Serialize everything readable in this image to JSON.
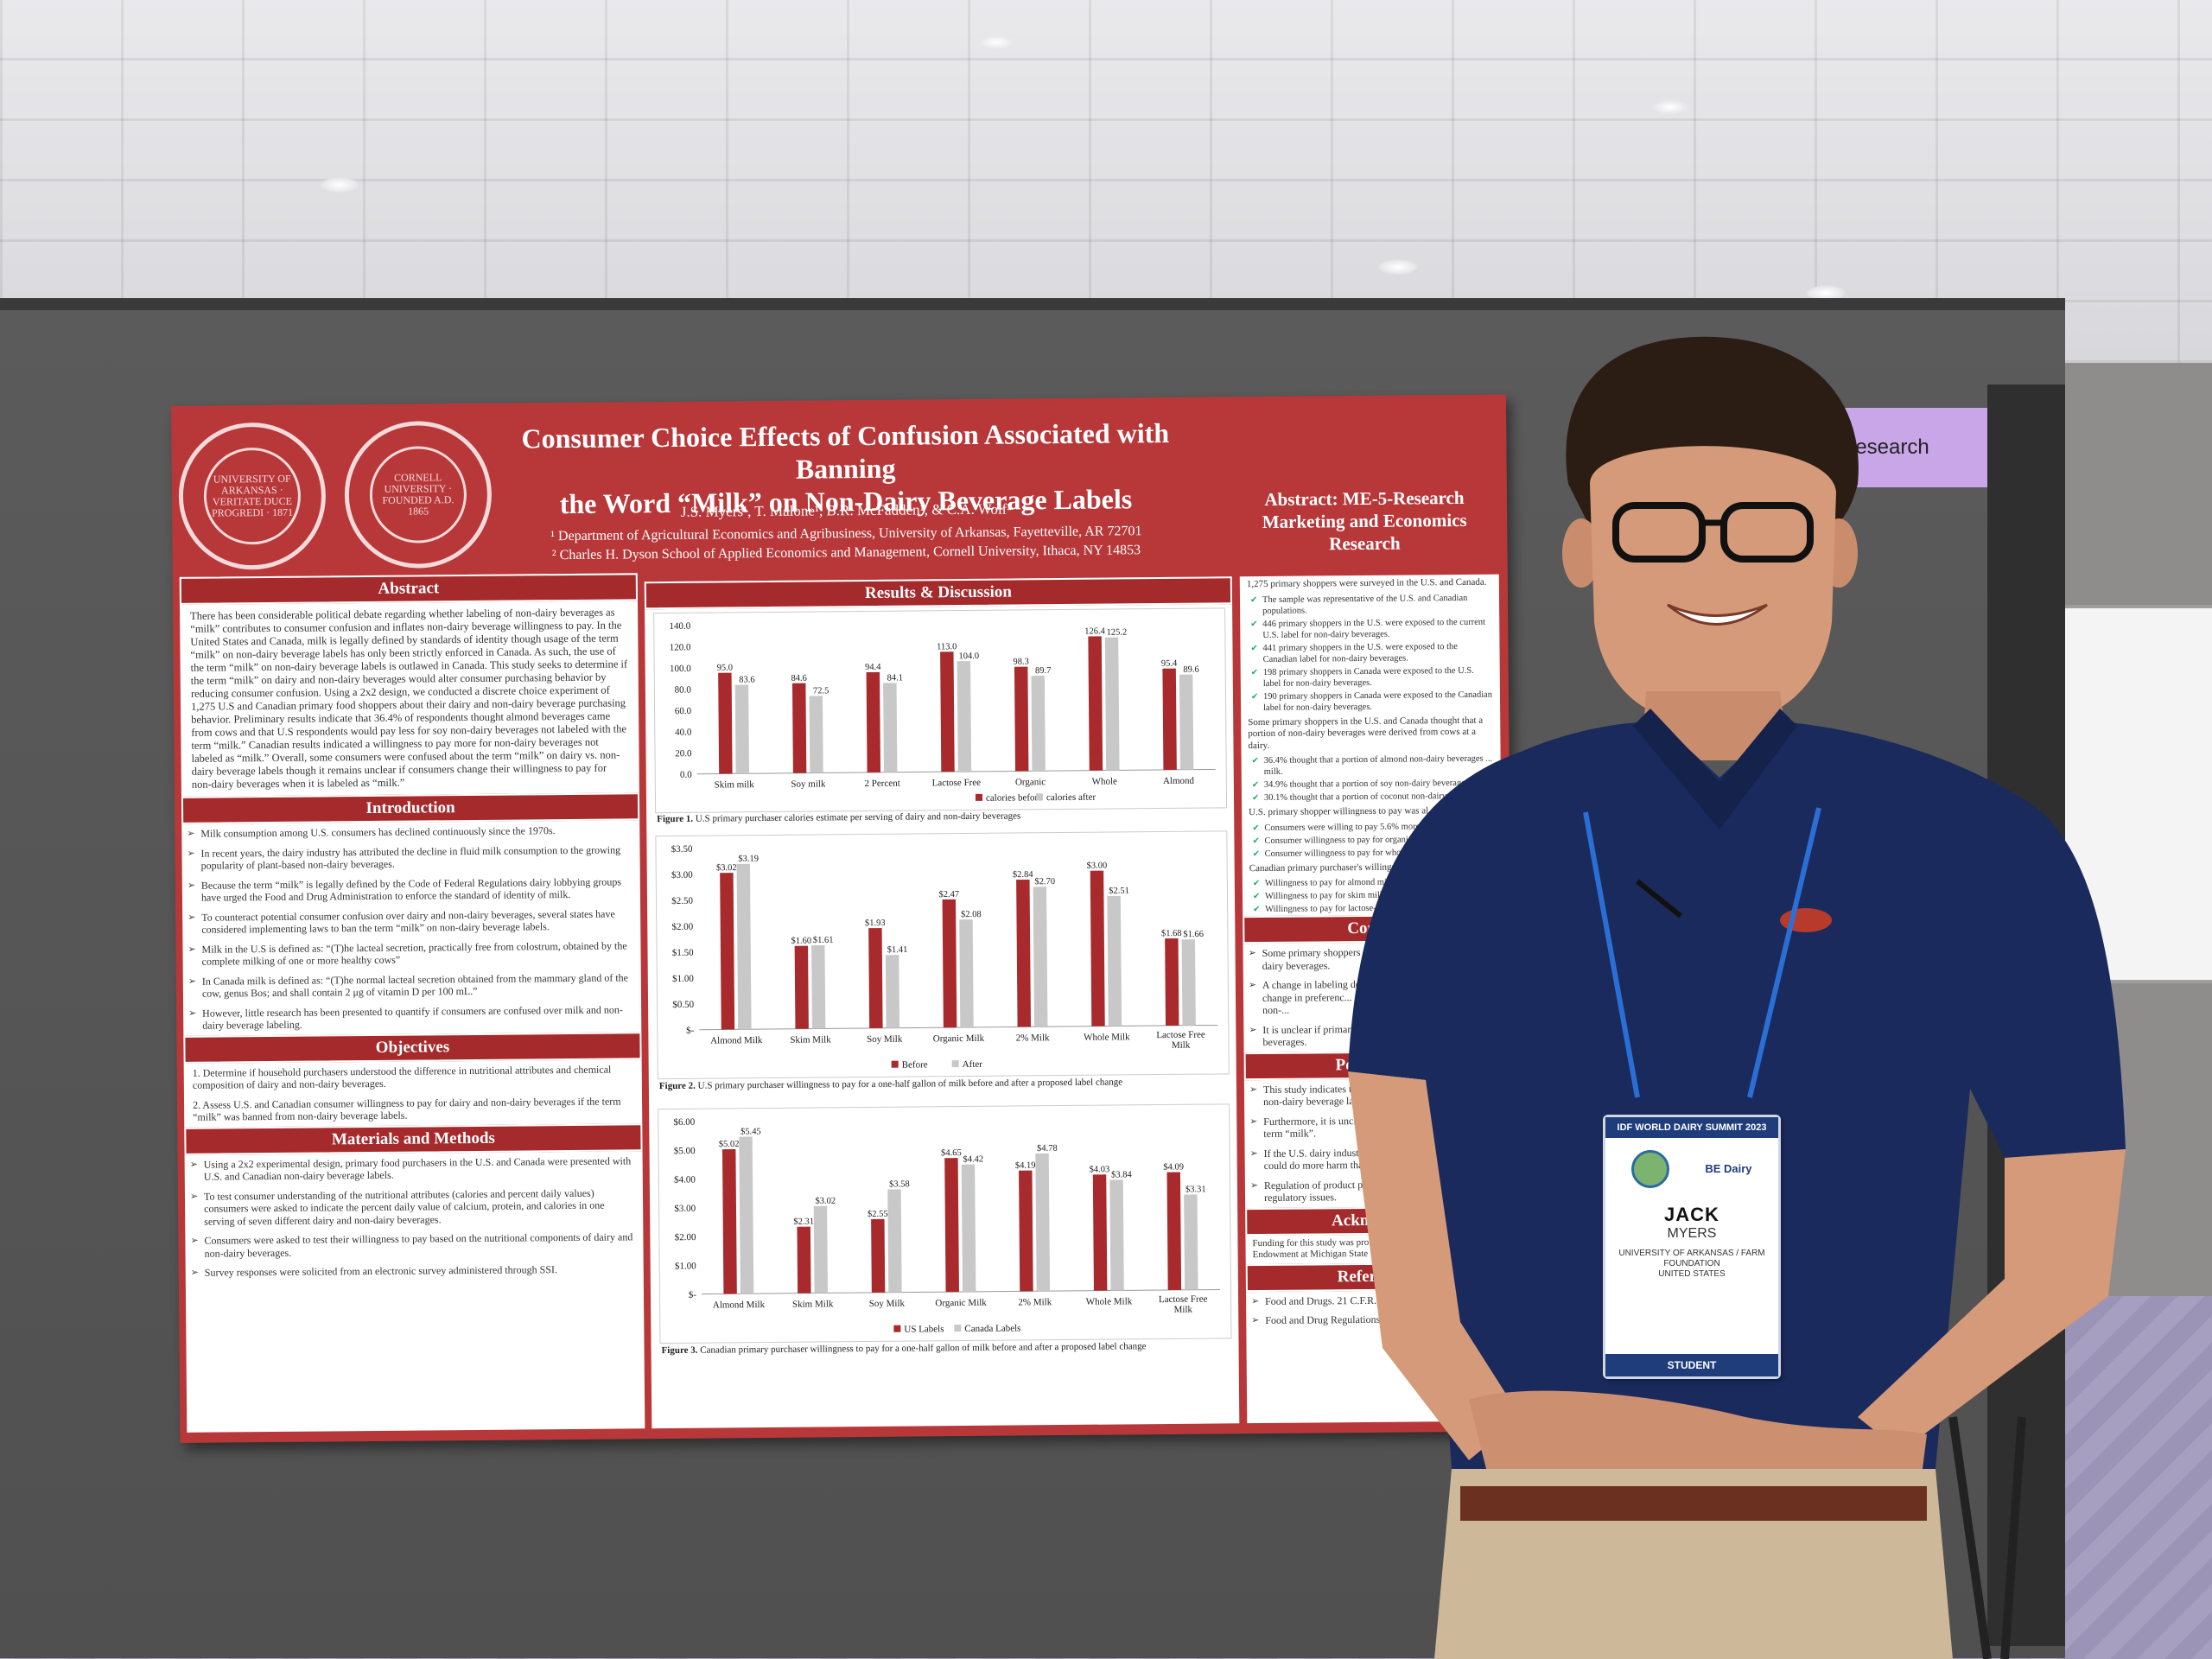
{
  "poster": {
    "seal_left": "UNIVERSITY OF ARKANSAS · VERITATE DUCE PROGREDI · 1871",
    "seal_right": "CORNELL UNIVERSITY · FOUNDED A.D. 1865",
    "title_line1": "Consumer Choice Effects of Confusion Associated with Banning",
    "title_line2": "the Word “Milk” on Non-Dairy Beverage Labels",
    "authors": "J.S. Myers¹, T. Malone¹, B.R. McFadden¹, & C.A. Wolf²",
    "affiliation1": "¹ Department of Agricultural Economics and Agribusiness, University of Arkansas, Fayetteville, AR 72701",
    "affiliation2": "² Charles H. Dyson School of Applied Economics and Management, Cornell University, Ithaca, NY 14853",
    "abstract_tag": "Abstract: ME-5-Research Marketing and Economics Research",
    "abstract_head": "Abstract",
    "abstract_text": "There has been considerable political debate regarding whether labeling of non-dairy beverages as “milk” contributes to consumer confusion and inflates non-dairy beverage willingness to pay. In the United States and Canada, milk is legally defined by standards of identity though usage of the term “milk” on non-dairy beverage labels has only been strictly enforced in Canada. As such, the use of the term “milk” on non-dairy beverage labels is outlawed in Canada. This study seeks to determine if the term “milk” on dairy and non-dairy beverages would alter consumer purchasing behavior by reducing consumer confusion. Using a 2x2 design, we conducted a discrete choice experiment of 1,275 U.S and Canadian primary food shoppers about their dairy and non-dairy beverage purchasing behavior. Preliminary results indicate that 36.4% of respondents thought almond beverages came from cows and that U.S respondents would pay less for soy non-dairy beverages not labeled with the term “milk.” Canadian results indicated a willingness to pay more for non-dairy beverages not labeled as “milk.” Overall, some consumers were confused about the term “milk” on dairy vs. non-dairy beverage labels though it remains unclear if consumers change their willingness to pay for non-dairy beverages when it is labeled as “milk.”",
    "intro_head": "Introduction",
    "intro_bullets": [
      "Milk consumption among U.S. consumers has declined continuously since the 1970s.",
      "In recent years, the dairy industry has attributed the decline in fluid milk consumption to the growing popularity of plant-based non-dairy beverages.",
      "Because the term “milk” is legally defined by the Code of Federal Regulations dairy lobbying groups have urged the Food and Drug Administration to enforce the standard of identity of milk.",
      "To counteract potential consumer confusion over dairy and non-dairy beverages, several states have considered implementing laws to ban the term “milk” on non-dairy beverage labels.",
      "Milk in the U.S is defined as: “(T)he lacteal secretion, practically free from colostrum, obtained by the complete milking of one or more healthy cows”",
      "In Canada milk is defined as: “(T)he normal lacteal secretion obtained from the mammary gland of the cow, genus Bos; and shall contain 2 μg of vitamin D per 100 mL.”",
      "However, little research has been presented to quantify if consumers are confused over milk and non-dairy beverage labeling."
    ],
    "obj_head": "Objectives",
    "objectives": [
      "1. Determine if household purchasers understood the difference in nutritional attributes and chemical composition of dairy and non-dairy beverages.",
      "2. Assess U.S. and Canadian consumer willingness to pay for dairy and non-dairy beverages if the term “milk” was banned from non-dairy beverage labels."
    ],
    "methods_head": "Materials and Methods",
    "methods_bullets": [
      "Using a 2x2 experimental design, primary food purchasers in the U.S. and Canada were presented with U.S. and Canadian non-dairy beverage labels.",
      "To test consumer understanding of the nutritional attributes (calories and percent daily values) consumers were asked to indicate the percent daily value of calcium, protein, and calories in one serving of seven different dairy and non-dairy beverages.",
      "Consumers were asked to test their willingness to pay based on the nutritional components of dairy and non-dairy beverages.",
      "Survey responses were solicited from an electronic survey administered through SSI."
    ],
    "results_head": "Results & Discussion",
    "fig1_caption_bold": "Figure 1.",
    "fig1_caption": " U.S primary purchaser calories estimate per serving of dairy and non-dairy beverages",
    "fig2_caption_bold": "Figure 2.",
    "fig2_caption": " U.S primary purchaser willingness to pay for a one-half gallon of milk before and after a proposed label change",
    "fig3_caption_bold": "Figure 3.",
    "fig3_caption": " Canadian primary purchaser willingness to pay for a one-half gallon of milk before and after a proposed label change",
    "right_p1": "1,275 primary shoppers were surveyed in the U.S. and Canada.",
    "right_checks1": [
      "The sample was representative of the U.S. and Canadian populations.",
      "446 primary shoppers in the U.S. were exposed to the current U.S. label for non-dairy beverages.",
      "441 primary shoppers in the U.S. were exposed to the Canadian label for non-dairy beverages.",
      "198 primary shoppers in Canada were exposed to the U.S. label for non-dairy beverages.",
      "190 primary shoppers in Canada were exposed to the Canadian label for non-dairy beverages."
    ],
    "right_p2": "Some primary shoppers in the U.S. and Canada thought that a portion of non-dairy beverages were derived from cows at a dairy.",
    "right_checks2": [
      "36.4% thought that a portion of almond non-dairy beverages ... milk.",
      "34.9% thought that a portion of soy non-dairy beverages ...",
      "30.1% thought that a portion of coconut non-dairy ... milk."
    ],
    "right_p3": "U.S. primary shopper willingness to pay was al... label change.",
    "right_checks3": [
      "Consumers were willing to pay 5.6% more f...",
      "Consumer willingness to pay for organic m...",
      "Consumer willingness to pay for whole mi..."
    ],
    "right_p4": "Canadian primary purchaser's willingness to ... the label change.",
    "right_checks4": [
      "Willingness to pay for almond milk increa...",
      "Willingness to pay for skim milk increa...",
      "Willingness to pay for lactose-free milk ..."
    ],
    "conclusion_head": "Conclu",
    "conclusion_bullets": [
      "Some primary shoppers were confused ... and non-dairy beverages.",
      "A change in labeling does appear to ... is unclear if this change in preferenc... nutritional attributes of dairy and non-...",
      "It is unclear if primary shoppers will ... non-dairy beverages."
    ],
    "policy_head": "Policy Imp",
    "policy_bullets": [
      "This study indicates that it is unclear ... restricted on non-dairy beverage labels w...",
      "Furthermore, it is unclear if the dairy in... use of the term “milk”.",
      "If the U.S. dairy industry chooses to figh... labeling, it could do more harm than good...",
      "Regulation of product placement in groc... box of regulatory issues."
    ],
    "ack_head": "Acknowledg",
    "ack_text": "Funding for this study was provided by th... Elton R. Smith Endowment at Michigan State U...",
    "ref_head": "References",
    "refs": [
      "Food and Drugs. 21 C.F.R. § 131 (2022)",
      "Food and Drug Regulations B.08.028.1 (2022)"
    ]
  },
  "chart_data": [
    {
      "type": "bar",
      "categories": [
        "Skim milk",
        "Soy milk",
        "2 Percent",
        "Lactose Free",
        "Organic",
        "Whole",
        "Almond"
      ],
      "series": [
        {
          "name": "calories before",
          "values": [
            95.0,
            84.6,
            94.4,
            113.0,
            98.3,
            126.4,
            95.4
          ]
        },
        {
          "name": "calories after",
          "values": [
            83.6,
            72.5,
            84.1,
            104.0,
            89.7,
            125.2,
            89.6
          ]
        }
      ],
      "ylim": [
        0,
        140
      ],
      "yticks": [
        "140.0",
        "120.0",
        "100.0",
        "80.0",
        "60.0",
        "40.0",
        "20.0",
        "0.0"
      ],
      "value_labels_before": [
        "95.0",
        "84.6",
        "94.4",
        "113.0",
        "98.3",
        "126.4",
        "95.4"
      ],
      "value_labels_after": [
        "83.6",
        "72.5",
        "84.1",
        "104.0",
        "89.7",
        "125.2",
        "89.6"
      ],
      "legend": "top-right",
      "colors": [
        "#a82a2c",
        "#c8c8c8"
      ]
    },
    {
      "type": "bar",
      "categories": [
        "Almond Milk",
        "Skim Milk",
        "Soy Milk",
        "Organic Milk",
        "2% Milk",
        "Whole Milk",
        "Lactose Free Milk"
      ],
      "series": [
        {
          "name": "Before",
          "values": [
            3.02,
            1.6,
            1.93,
            2.47,
            2.84,
            3.0,
            1.68
          ]
        },
        {
          "name": "After",
          "values": [
            3.19,
            1.61,
            1.41,
            2.08,
            2.7,
            2.51,
            1.66
          ]
        }
      ],
      "ylim": [
        0,
        3.5
      ],
      "yticks": [
        "$3.50",
        "$3.00",
        "$2.50",
        "$2.00",
        "$1.50",
        "$1.00",
        "$0.50",
        "$-"
      ],
      "value_labels_before": [
        "$3.02",
        "$1.60",
        "$1.93",
        "$2.47",
        "$2.84",
        "$3.00",
        "$1.68"
      ],
      "value_labels_after": [
        "$3.19",
        "$1.61",
        "$1.41",
        "$2.08",
        "$2.70",
        "$2.51",
        "$1.66"
      ],
      "legend": "bottom",
      "colors": [
        "#a82a2c",
        "#c8c8c8"
      ]
    },
    {
      "type": "bar",
      "categories": [
        "Almond Milk",
        "Skim Milk",
        "Soy Milk",
        "Organic Milk",
        "2% Milk",
        "Whole Milk",
        "Lactose Free Milk"
      ],
      "series": [
        {
          "name": "US Labels",
          "values": [
            5.02,
            2.31,
            2.55,
            4.65,
            4.19,
            4.03,
            4.09
          ]
        },
        {
          "name": "Canada Labels",
          "values": [
            5.45,
            3.02,
            3.58,
            4.42,
            4.78,
            3.84,
            3.31
          ]
        }
      ],
      "ylim": [
        0,
        6
      ],
      "yticks": [
        "$6.00",
        "$5.00",
        "$4.00",
        "$3.00",
        "$2.00",
        "$1.00",
        "$-"
      ],
      "value_labels_before": [
        "$5.02",
        "$2.31",
        "$2.55",
        "$4.65",
        "$4.19",
        "$4.03",
        "$4.09"
      ],
      "value_labels_after": [
        "$5.45",
        "$3.02",
        "$3.58",
        "$4.42",
        "$4.78",
        "$3.84",
        "$3.31"
      ],
      "legend": "bottom",
      "colors": [
        "#a82a2c",
        "#c8c8c8"
      ]
    }
  ],
  "booth": {
    "sign_text": "Research"
  },
  "badge": {
    "event": "IDF WORLD DAIRY SUMMIT 2023",
    "logo2_text": "BE Dairy",
    "first_name": "JACK",
    "last_name": "MYERS",
    "org_line1": "UNIVERSITY OF ARKANSAS / FARM",
    "org_line2": "FOUNDATION",
    "org_line3": "UNITED STATES",
    "role": "STUDENT"
  },
  "colors": {
    "poster_red": "#b8383a",
    "header_red": "#a52a2c",
    "bar_red": "#a82a2c",
    "bar_grey": "#c8c8c8",
    "shirt_navy": "#1a2a5c",
    "lanyard_blue": "#2b6fd6"
  }
}
